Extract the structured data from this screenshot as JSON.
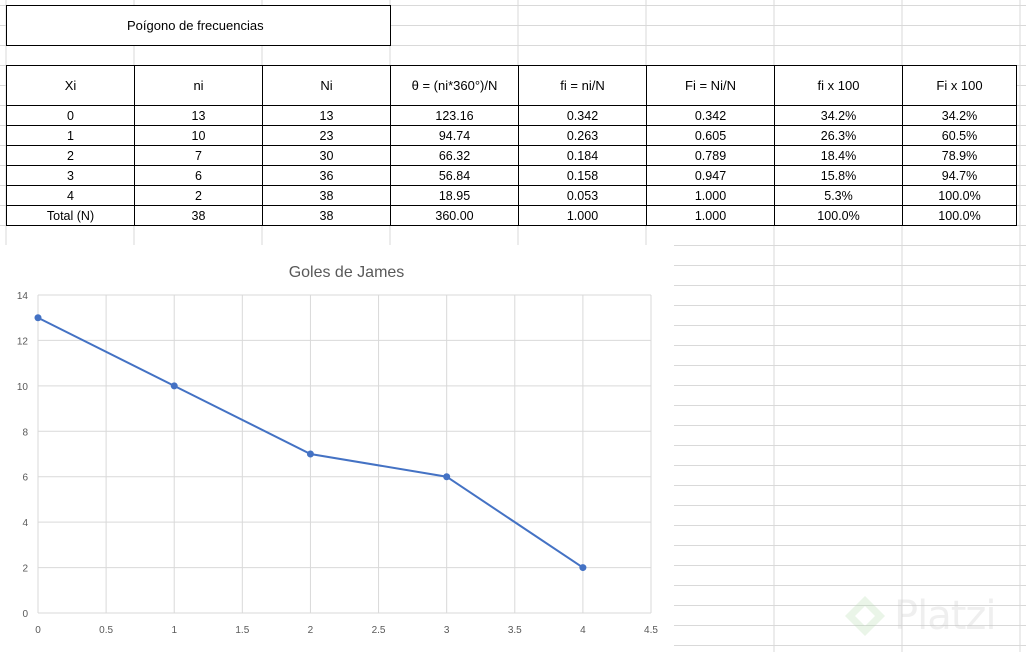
{
  "title": "Poígono de frecuencias",
  "table": {
    "headers": [
      "Xi",
      "ni",
      "Ni",
      "θ = (ni*360°)/N",
      "fi = ni/N",
      "Fi = Ni/N",
      "fi x 100",
      "Fi x 100"
    ],
    "rows": [
      [
        "0",
        "13",
        "13",
        "123.16",
        "0.342",
        "0.342",
        "34.2%",
        "34.2%"
      ],
      [
        "1",
        "10",
        "23",
        "94.74",
        "0.263",
        "0.605",
        "26.3%",
        "60.5%"
      ],
      [
        "2",
        "7",
        "30",
        "66.32",
        "0.184",
        "0.789",
        "18.4%",
        "78.9%"
      ],
      [
        "3",
        "6",
        "36",
        "56.84",
        "0.158",
        "0.947",
        "15.8%",
        "94.7%"
      ],
      [
        "4",
        "2",
        "38",
        "18.95",
        "0.053",
        "1.000",
        "5.3%",
        "100.0%"
      ],
      [
        "Total (N)",
        "38",
        "38",
        "360.00",
        "1.000",
        "1.000",
        "100.0%",
        "100.0%"
      ]
    ]
  },
  "chart_data": {
    "type": "line",
    "title": "Goles de James",
    "x": [
      0,
      1,
      2,
      3,
      4
    ],
    "series": [
      {
        "values": [
          13,
          10,
          7,
          6,
          2
        ],
        "color": "#4472C4"
      }
    ],
    "xlim": [
      0,
      4.5
    ],
    "ylim": [
      0,
      14
    ],
    "xticks": [
      "0",
      "0.5",
      "1",
      "1.5",
      "2",
      "2.5",
      "3",
      "3.5",
      "4",
      "4.5"
    ],
    "yticks": [
      "0",
      "2",
      "4",
      "6",
      "8",
      "10",
      "12",
      "14"
    ],
    "grid": true,
    "legend": "none"
  },
  "watermark": {
    "text": "Platzi"
  }
}
